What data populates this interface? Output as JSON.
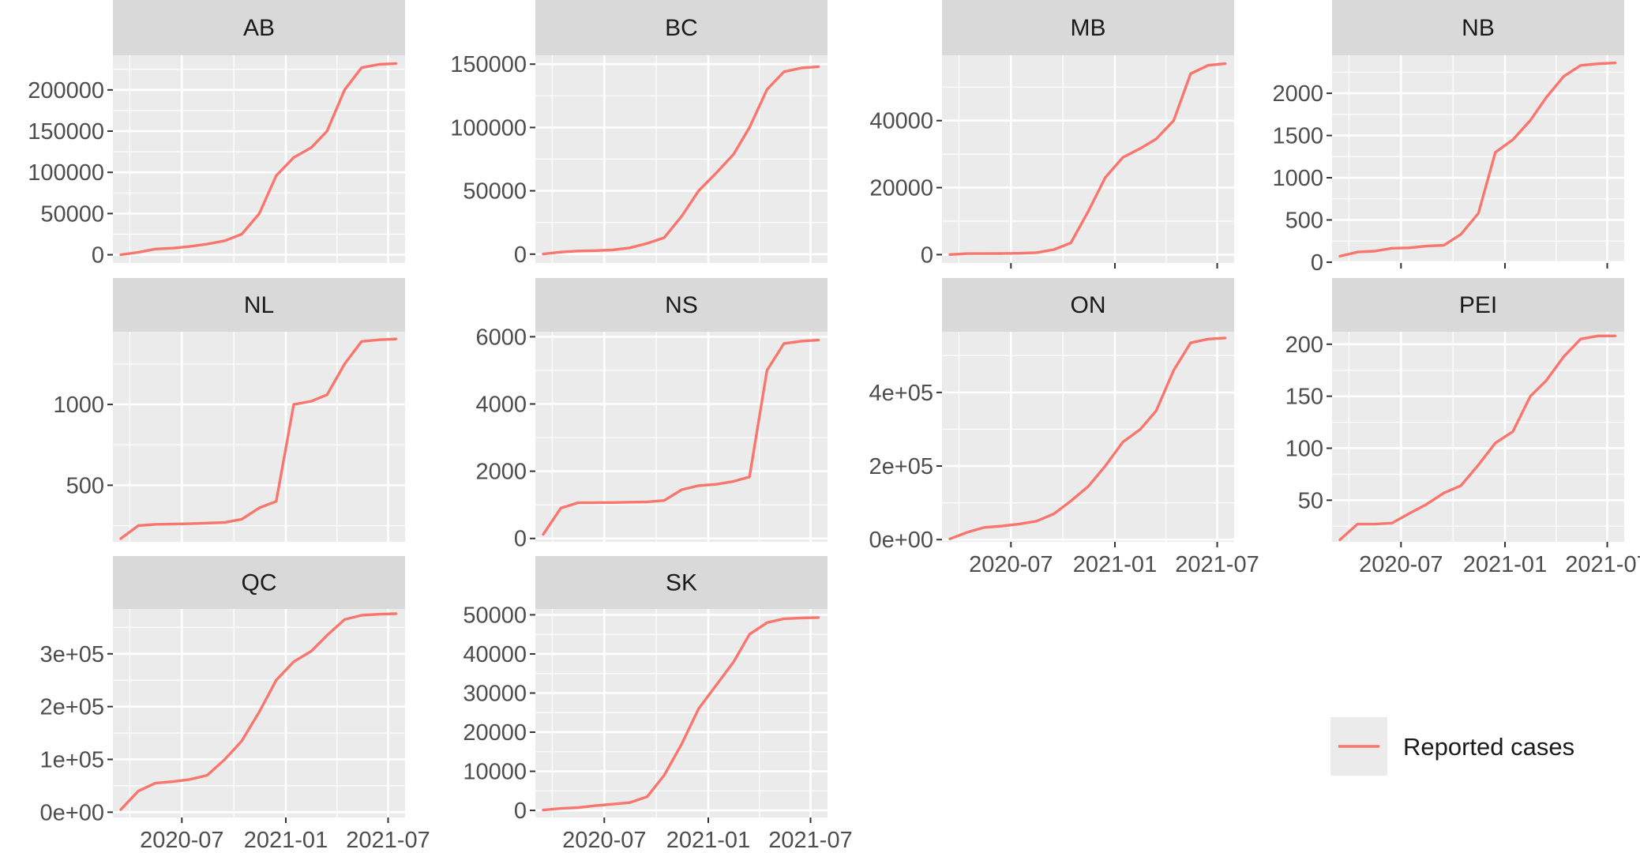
{
  "chart_data": {
    "type": "line",
    "layout": "facet_wrap",
    "scales": "free_y",
    "x_dates": [
      "2020-03-15",
      "2020-04-15",
      "2020-05-15",
      "2020-06-15",
      "2020-07-15",
      "2020-08-15",
      "2020-09-15",
      "2020-10-15",
      "2020-11-15",
      "2020-12-15",
      "2021-01-15",
      "2021-02-15",
      "2021-03-15",
      "2021-04-15",
      "2021-05-15",
      "2021-06-15",
      "2021-07-15"
    ],
    "x_range": [
      "2020-03-01",
      "2021-07-31"
    ],
    "x_ticks": [
      "2020-07",
      "2021-01",
      "2021-07"
    ],
    "x_tick_dates": [
      "2020-07-01",
      "2021-01-01",
      "2021-07-01"
    ],
    "series_name": "Reported cases",
    "series_color": "#F8766D",
    "legend_position": "right",
    "facets": [
      {
        "label": "AB",
        "ylim": [
          -10000,
          242000
        ],
        "y_ticks": [
          0,
          50000,
          100000,
          150000,
          200000
        ],
        "y_tick_labels": [
          "0",
          "50000",
          "100000",
          "150000",
          "200000"
        ],
        "values": [
          100,
          3000,
          7000,
          8000,
          10000,
          13000,
          17000,
          25000,
          50000,
          96000,
          118000,
          130000,
          150000,
          200000,
          227000,
          231000,
          232000
        ]
      },
      {
        "label": "BC",
        "ylim": [
          -7000,
          157000
        ],
        "y_ticks": [
          0,
          50000,
          100000,
          150000
        ],
        "y_tick_labels": [
          "0",
          "50000",
          "100000",
          "150000"
        ],
        "values": [
          100,
          1600,
          2500,
          2800,
          3300,
          5000,
          8500,
          13000,
          30000,
          50000,
          64000,
          79000,
          100000,
          130000,
          144000,
          147000,
          148000
        ]
      },
      {
        "label": "MB",
        "ylim": [
          -2500,
          59500
        ],
        "y_ticks": [
          0,
          20000,
          40000
        ],
        "y_tick_labels": [
          "0",
          "20000",
          "40000"
        ],
        "values": [
          30,
          300,
          300,
          320,
          400,
          600,
          1500,
          3500,
          13000,
          23000,
          29000,
          31700,
          34500,
          40000,
          54000,
          56500,
          57000
        ]
      },
      {
        "label": "NB",
        "ylim": [
          -10,
          2450
        ],
        "y_ticks": [
          0,
          500,
          1000,
          1500,
          2000
        ],
        "y_tick_labels": [
          "0",
          "500",
          "1000",
          "1500",
          "2000"
        ],
        "values": [
          70,
          120,
          130,
          165,
          170,
          190,
          200,
          330,
          580,
          1300,
          1450,
          1680,
          1950,
          2200,
          2330,
          2350,
          2360
        ]
      },
      {
        "label": "NL",
        "ylim": [
          150,
          1450
        ],
        "y_ticks": [
          500,
          1000
        ],
        "y_tick_labels": [
          "500",
          "1000"
        ],
        "values": [
          170,
          250,
          258,
          260,
          262,
          266,
          270,
          290,
          360,
          400,
          1000,
          1020,
          1060,
          1250,
          1390,
          1400,
          1405
        ]
      },
      {
        "label": "NS",
        "ylim": [
          -100,
          6150
        ],
        "y_ticks": [
          0,
          2000,
          4000,
          6000
        ],
        "y_tick_labels": [
          "0",
          "2000",
          "4000",
          "6000"
        ],
        "values": [
          120,
          900,
          1060,
          1065,
          1068,
          1080,
          1090,
          1130,
          1450,
          1570,
          1610,
          1700,
          1830,
          5000,
          5800,
          5870,
          5900
        ]
      },
      {
        "label": "ON",
        "ylim": [
          -6000,
          565000
        ],
        "y_ticks": [
          0,
          200000,
          400000
        ],
        "y_tick_labels": [
          "0e+00",
          "2e+05",
          "4e+05"
        ],
        "values": [
          2000,
          20000,
          33000,
          37000,
          42000,
          50000,
          70000,
          105000,
          145000,
          200000,
          265000,
          300000,
          350000,
          460000,
          535000,
          545000,
          548000
        ]
      },
      {
        "label": "PEI",
        "ylim": [
          10,
          212
        ],
        "y_ticks": [
          50,
          100,
          150,
          200
        ],
        "y_tick_labels": [
          "50",
          "100",
          "150",
          "200"
        ],
        "values": [
          12,
          27,
          27,
          28,
          37,
          46,
          57,
          64,
          84,
          105,
          116,
          150,
          165,
          188,
          205,
          208,
          208
        ]
      },
      {
        "label": "QC",
        "ylim": [
          -10000,
          385000
        ],
        "y_ticks": [
          0,
          100000,
          200000,
          300000
        ],
        "y_tick_labels": [
          "0e+00",
          "1e+05",
          "2e+05",
          "3e+05"
        ],
        "values": [
          5000,
          40000,
          55000,
          58000,
          62000,
          70000,
          100000,
          135000,
          190000,
          250000,
          285000,
          305000,
          335000,
          365000,
          373000,
          375000,
          376000
        ]
      },
      {
        "label": "SK",
        "ylim": [
          -1800,
          51500
        ],
        "y_ticks": [
          0,
          10000,
          20000,
          30000,
          40000,
          50000
        ],
        "y_tick_labels": [
          "0",
          "10000",
          "20000",
          "30000",
          "40000",
          "50000"
        ],
        "values": [
          100,
          500,
          700,
          1200,
          1600,
          2000,
          3500,
          9000,
          17000,
          26000,
          32000,
          38000,
          45000,
          48000,
          49000,
          49200,
          49300
        ]
      }
    ],
    "x_axis_shown_on": [
      "MB",
      "NB",
      "ON",
      "PEI",
      "QC",
      "SK"
    ],
    "x_axis_labels_on": [
      "ON",
      "PEI",
      "QC",
      "SK"
    ]
  }
}
